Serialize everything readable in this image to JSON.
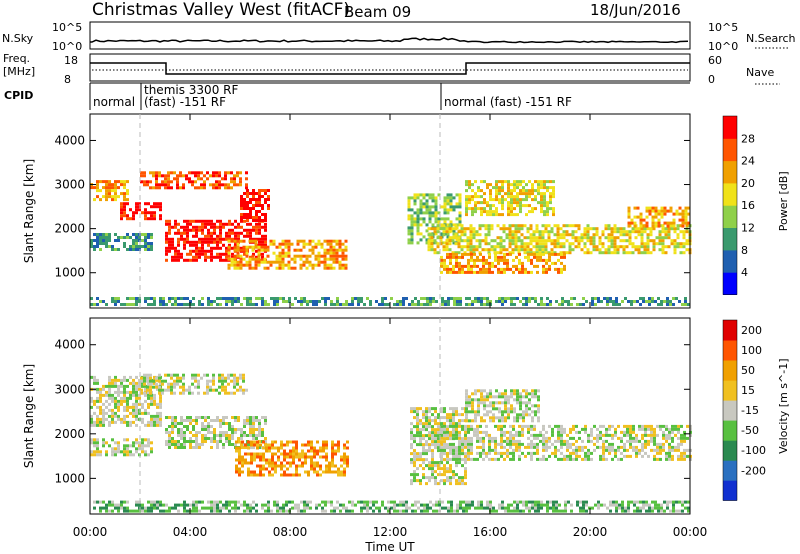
{
  "header": {
    "title": "Christmas Valley West (fitACF)",
    "beam": "Beam 09",
    "date": "18/Jun/2016"
  },
  "strips": {
    "nsky": {
      "label": "N.Sky",
      "ticks": [
        "10^5",
        "10^0"
      ],
      "right_label": "N.Search",
      "right_ticks": [
        "10^5",
        "10^0"
      ]
    },
    "freq": {
      "label_line1": "Freq.",
      "label_line2": "[MHz]",
      "ticks": [
        "18",
        "8"
      ],
      "right_label": "Nave",
      "right_ticks": [
        "60",
        "0"
      ]
    },
    "cpid": {
      "label": "CPID",
      "segments": [
        "normal",
        "themis 3300 RF",
        "(fast) -151 RF",
        "normal (fast) -151 RF"
      ]
    }
  },
  "x_axis": {
    "label": "Time UT",
    "ticks": [
      "00:00",
      "04:00",
      "08:00",
      "12:00",
      "16:00",
      "20:00",
      "00:00"
    ]
  },
  "chart_data": [
    {
      "type": "heatmap",
      "name": "power",
      "ylabel": "Slant Range [km]",
      "yticks": [
        "1000",
        "2000",
        "3000",
        "4000"
      ],
      "ylim": [
        200,
        4600
      ],
      "xlim": [
        0,
        24
      ],
      "colorbar": {
        "label": "Power [dB]",
        "ticks": [
          "4",
          "8",
          "12",
          "16",
          "20",
          "24",
          "28"
        ],
        "colors": [
          "#0000ff",
          "#1f5fb0",
          "#3a9a6e",
          "#8fd04a",
          "#f0e21a",
          "#f0a000",
          "#ff5500",
          "#ff0000"
        ]
      },
      "regions": [
        {
          "t0": 0.0,
          "t1": 1.5,
          "r0": 2650,
          "r1": 3100,
          "level": 5
        },
        {
          "t0": 1.2,
          "t1": 2.8,
          "r0": 2200,
          "r1": 2600,
          "level": 7
        },
        {
          "t0": 2.0,
          "t1": 6.2,
          "r0": 2900,
          "r1": 3300,
          "level": 6
        },
        {
          "t0": 3.0,
          "t1": 7.0,
          "r0": 1300,
          "r1": 2200,
          "level": 7
        },
        {
          "t0": 6.0,
          "t1": 7.2,
          "r0": 2200,
          "r1": 2900,
          "level": 7
        },
        {
          "t0": 5.5,
          "t1": 10.3,
          "r0": 1100,
          "r1": 1750,
          "level": 5
        },
        {
          "t0": 0.0,
          "t1": 2.5,
          "r0": 1550,
          "r1": 1900,
          "level": 2
        },
        {
          "t0": 12.7,
          "t1": 14.8,
          "r0": 1700,
          "r1": 2800,
          "level": 3
        },
        {
          "t0": 15.0,
          "t1": 18.5,
          "r0": 2300,
          "r1": 3100,
          "level": 4
        },
        {
          "t0": 13.5,
          "t1": 24.0,
          "r0": 1450,
          "r1": 2100,
          "level": 4
        },
        {
          "t0": 14.0,
          "t1": 19.0,
          "r0": 1000,
          "r1": 1450,
          "level": 5
        },
        {
          "t0": 21.5,
          "t1": 24.0,
          "r0": 2050,
          "r1": 2500,
          "level": 5
        },
        {
          "t0": 0.0,
          "t1": 24.0,
          "r0": 250,
          "r1": 450,
          "level": 2
        }
      ]
    },
    {
      "type": "heatmap",
      "name": "velocity",
      "ylabel": "Slant Range [km]",
      "yticks": [
        "1000",
        "2000",
        "3000",
        "4000"
      ],
      "ylim": [
        200,
        4600
      ],
      "xlim": [
        0,
        24
      ],
      "colorbar": {
        "label": "Velocity [m s^-1]",
        "ticks": [
          "200",
          "100",
          "50",
          "15",
          "-15",
          "-50",
          "-100",
          "-200"
        ],
        "colors": [
          "#1030d0",
          "#2a70c0",
          "#2a8a50",
          "#58c040",
          "#c8c8c0",
          "#f0c020",
          "#f0a000",
          "#ff5500",
          "#e00000"
        ]
      },
      "regions": [
        {
          "t0": 0.0,
          "t1": 2.8,
          "r0": 2200,
          "r1": 3300,
          "level": 4
        },
        {
          "t0": 2.0,
          "t1": 6.3,
          "r0": 2900,
          "r1": 3350,
          "level": 4
        },
        {
          "t0": 3.0,
          "t1": 7.0,
          "r0": 1700,
          "r1": 2400,
          "level": 4
        },
        {
          "t0": 0.0,
          "t1": 2.5,
          "r0": 1550,
          "r1": 1900,
          "level": 4
        },
        {
          "t0": 5.8,
          "t1": 10.3,
          "r0": 1100,
          "r1": 1850,
          "level": 6
        },
        {
          "t0": 12.8,
          "t1": 15.0,
          "r0": 900,
          "r1": 2600,
          "level": 4
        },
        {
          "t0": 14.0,
          "t1": 24.0,
          "r0": 1400,
          "r1": 2200,
          "level": 4
        },
        {
          "t0": 15.0,
          "t1": 18.0,
          "r0": 2300,
          "r1": 3000,
          "level": 4
        },
        {
          "t0": 0.0,
          "t1": 24.0,
          "r0": 250,
          "r1": 500,
          "level": 3
        }
      ]
    }
  ]
}
